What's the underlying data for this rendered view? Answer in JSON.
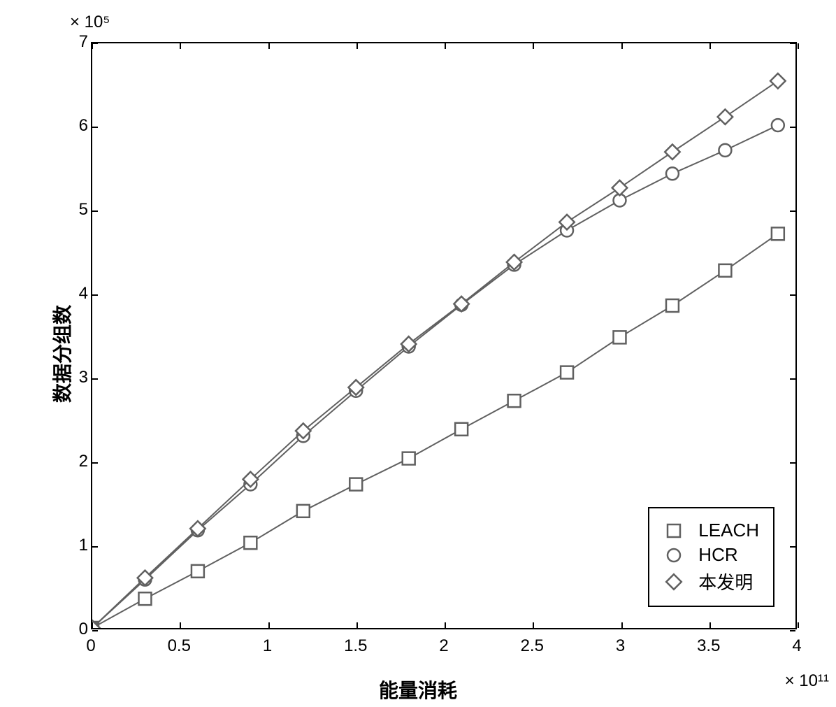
{
  "chart": {
    "type": "line-scatter",
    "background_color": "#ffffff",
    "border_color": "#000000",
    "line_color": "#606060",
    "line_width": 2,
    "marker_size": 18,
    "marker_stroke_width": 2.5,
    "y_mult_label": "× 10⁵",
    "x_mult_label": "× 10¹¹",
    "y_axis_label": "数据分组数",
    "x_axis_label": "能量消耗",
    "xlim": [
      0,
      4
    ],
    "ylim": [
      0,
      7
    ],
    "x_ticks": [
      0,
      0.5,
      1,
      1.5,
      2,
      2.5,
      3,
      3.5,
      4
    ],
    "x_tick_labels": [
      "0",
      "0.5",
      "1",
      "1.5",
      "2",
      "2.5",
      "3",
      "3.5",
      "4"
    ],
    "y_ticks": [
      0,
      1,
      2,
      3,
      4,
      5,
      6,
      7
    ],
    "y_tick_labels": [
      "0",
      "1",
      "2",
      "3",
      "4",
      "5",
      "6",
      "7"
    ],
    "tick_fontsize": 24,
    "label_fontsize": 28,
    "series": [
      {
        "name": "LEACH",
        "marker": "square",
        "x": [
          0,
          0.3,
          0.6,
          0.9,
          1.2,
          1.5,
          1.8,
          2.1,
          2.4,
          2.7,
          3.0,
          3.3,
          3.6,
          3.9
        ],
        "y": [
          0,
          0.35,
          0.68,
          1.02,
          1.4,
          1.72,
          2.03,
          2.38,
          2.72,
          3.06,
          3.48,
          3.86,
          4.28,
          4.72
        ]
      },
      {
        "name": "HCR",
        "marker": "circle",
        "x": [
          0,
          0.3,
          0.6,
          0.9,
          1.2,
          1.5,
          1.8,
          2.1,
          2.4,
          2.7,
          3.0,
          3.3,
          3.6,
          3.9
        ],
        "y": [
          0,
          0.58,
          1.17,
          1.72,
          2.3,
          2.84,
          3.37,
          3.87,
          4.35,
          4.76,
          5.12,
          5.44,
          5.72,
          6.02
        ]
      },
      {
        "name": "本发明",
        "marker": "diamond",
        "x": [
          0,
          0.3,
          0.6,
          0.9,
          1.2,
          1.5,
          1.8,
          2.1,
          2.4,
          2.7,
          3.0,
          3.3,
          3.6,
          3.9
        ],
        "y": [
          0,
          0.6,
          1.19,
          1.78,
          2.36,
          2.88,
          3.4,
          3.88,
          4.38,
          4.86,
          5.27,
          5.7,
          6.12,
          6.55
        ]
      }
    ],
    "legend": {
      "position": "bottom-right",
      "items": [
        {
          "marker": "square",
          "label": "LEACH"
        },
        {
          "marker": "circle",
          "label": "HCR"
        },
        {
          "marker": "diamond",
          "label": "本发明"
        }
      ]
    }
  }
}
